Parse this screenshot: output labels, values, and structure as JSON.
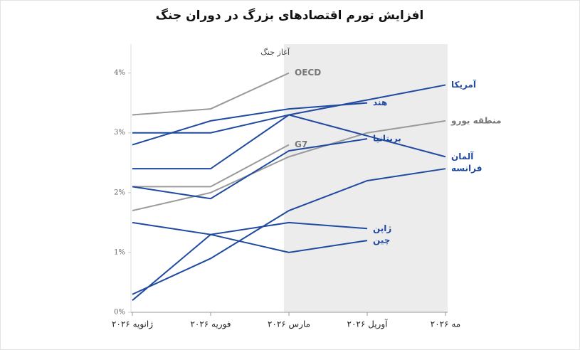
{
  "chart_data": {
    "type": "line",
    "title": "افزایش تورم اقتصادهای بزرگ در دوران جنگ",
    "annotation": "آغاز جنگ",
    "categories": [
      "ژانویه ۲۰۲۶",
      "فوریه ۲۰۲۶",
      "مارس ۲۰۲۶",
      "آوریل ۲۰۲۶",
      "مه ۲۰۲۶"
    ],
    "ylim": [
      0,
      4.4
    ],
    "yticks": [
      {
        "value": 0,
        "label": "0%"
      },
      {
        "value": 1,
        "label": "1%"
      },
      {
        "value": 2,
        "label": "2%"
      },
      {
        "value": 3,
        "label": "3%"
      },
      {
        "value": 4,
        "label": "4%"
      }
    ],
    "grid": false,
    "series": [
      {
        "name": "OECD",
        "color": "#9a9a9a",
        "values": [
          3.3,
          3.4,
          4.0,
          null,
          null
        ]
      },
      {
        "name": "G7",
        "color": "#9a9a9a",
        "values": [
          2.1,
          2.1,
          2.8,
          null,
          null
        ]
      },
      {
        "name": "منطقه یورو",
        "color": "#9a9a9a",
        "values": [
          1.7,
          2.0,
          2.6,
          3.0,
          3.2
        ]
      },
      {
        "name": "آمریکا",
        "color": "#1f4aa0",
        "values": [
          3.0,
          3.0,
          3.3,
          3.55,
          3.8
        ]
      },
      {
        "name": "هند",
        "color": "#1f4aa0",
        "values": [
          2.8,
          3.2,
          3.4,
          3.5,
          null
        ]
      },
      {
        "name": "آلمان",
        "color": "#1f4aa0",
        "values": [
          2.4,
          2.4,
          3.3,
          2.95,
          2.6
        ]
      },
      {
        "name": "بریتانیا",
        "color": "#1f4aa0",
        "values": [
          2.1,
          1.9,
          2.7,
          2.9,
          null
        ]
      },
      {
        "name": "فرانسه",
        "color": "#1f4aa0",
        "values": [
          0.3,
          0.9,
          1.7,
          2.2,
          2.4
        ]
      },
      {
        "name": "ژاپن",
        "color": "#1f4aa0",
        "values": [
          0.2,
          1.3,
          1.5,
          1.4,
          null
        ]
      },
      {
        "name": "چین",
        "color": "#1f4aa0",
        "values": [
          1.5,
          1.3,
          1.0,
          1.2,
          null
        ]
      }
    ]
  }
}
